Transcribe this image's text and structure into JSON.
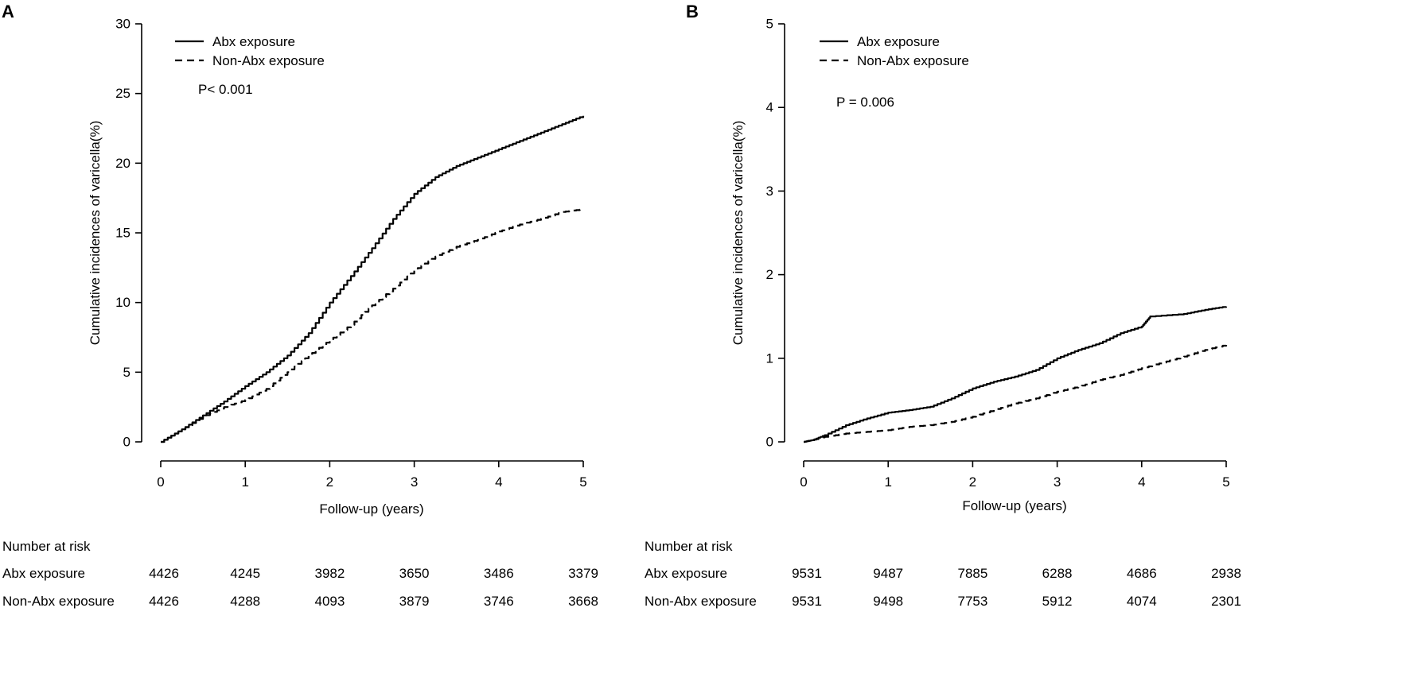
{
  "chart_data": [
    {
      "type": "line",
      "panel": "A",
      "xlabel": "Follow-up (years)",
      "ylabel": "Cumulative incidences of varicella(%)",
      "xlim": [
        0,
        5
      ],
      "ylim": [
        0,
        30
      ],
      "xticks": [
        "0",
        "1",
        "2",
        "3",
        "4",
        "5"
      ],
      "yticks": [
        "0",
        "5",
        "10",
        "15",
        "20",
        "25",
        "30"
      ],
      "legend_position": "top-left",
      "annotation": "P< 0.001",
      "series": [
        {
          "name": "Abx exposure",
          "style": "solid",
          "x": [
            0,
            0.25,
            0.5,
            0.75,
            1.0,
            1.25,
            1.5,
            1.75,
            2.0,
            2.25,
            2.5,
            2.75,
            3.0,
            3.25,
            3.5,
            3.75,
            4.0,
            4.25,
            4.5,
            4.75,
            5.0
          ],
          "y": [
            0,
            0.9,
            1.9,
            2.9,
            4.0,
            5.0,
            6.2,
            7.8,
            10.0,
            11.9,
            13.9,
            16.0,
            17.8,
            19.0,
            19.8,
            20.4,
            21.0,
            21.6,
            22.2,
            22.8,
            23.4
          ]
        },
        {
          "name": "Non-Abx exposure",
          "style": "dashed",
          "x": [
            0,
            0.25,
            0.5,
            0.75,
            1.0,
            1.25,
            1.5,
            1.75,
            2.0,
            2.25,
            2.5,
            2.75,
            3.0,
            3.25,
            3.5,
            3.75,
            4.0,
            4.25,
            4.5,
            4.75,
            5.0
          ],
          "y": [
            0,
            0.9,
            1.8,
            2.5,
            3.0,
            3.8,
            5.0,
            6.2,
            7.3,
            8.4,
            9.8,
            11.0,
            12.3,
            13.3,
            14.0,
            14.5,
            15.1,
            15.6,
            16.0,
            16.5,
            16.7
          ]
        }
      ],
      "risk_table": {
        "title": "Number at risk",
        "rows": [
          {
            "label": "Abx exposure",
            "values": [
              "4426",
              "4245",
              "3982",
              "3650",
              "3486",
              "3379"
            ]
          },
          {
            "label": "Non-Abx exposure",
            "values": [
              "4426",
              "4288",
              "4093",
              "3879",
              "3746",
              "3668"
            ]
          }
        ]
      }
    },
    {
      "type": "line",
      "panel": "B",
      "xlabel": "Follow-up (years)",
      "ylabel": "Cumulative incidences of varicella(%)",
      "xlim": [
        0,
        5
      ],
      "ylim": [
        0,
        5
      ],
      "xticks": [
        "0",
        "1",
        "2",
        "3",
        "4",
        "5"
      ],
      "yticks": [
        "0",
        "1",
        "2",
        "3",
        "4",
        "5"
      ],
      "legend_position": "top-left",
      "annotation": "P = 0.006",
      "series": [
        {
          "name": "Abx exposure",
          "style": "solid",
          "x": [
            0,
            0.1,
            0.25,
            0.5,
            0.75,
            1.0,
            1.25,
            1.5,
            1.75,
            2.0,
            2.25,
            2.5,
            2.75,
            3.0,
            3.25,
            3.5,
            3.75,
            4.0,
            4.1,
            4.5,
            4.75,
            5.0
          ],
          "y": [
            0,
            0.02,
            0.08,
            0.2,
            0.28,
            0.35,
            0.38,
            0.42,
            0.52,
            0.64,
            0.72,
            0.78,
            0.86,
            1.0,
            1.1,
            1.18,
            1.3,
            1.38,
            1.5,
            1.53,
            1.58,
            1.62
          ]
        },
        {
          "name": "Non-Abx exposure",
          "style": "dashed",
          "x": [
            0,
            0.1,
            0.25,
            0.5,
            0.75,
            1.0,
            1.25,
            1.5,
            1.75,
            2.0,
            2.25,
            2.5,
            2.75,
            3.0,
            3.25,
            3.5,
            3.75,
            4.0,
            4.25,
            4.5,
            4.75,
            5.0
          ],
          "y": [
            0,
            0.02,
            0.06,
            0.1,
            0.12,
            0.14,
            0.18,
            0.2,
            0.24,
            0.3,
            0.38,
            0.46,
            0.52,
            0.6,
            0.66,
            0.74,
            0.8,
            0.88,
            0.95,
            1.02,
            1.1,
            1.16
          ]
        }
      ],
      "risk_table": {
        "title": "Number at risk",
        "rows": [
          {
            "label": "Abx exposure",
            "values": [
              "9531",
              "9487",
              "7885",
              "6288",
              "4686",
              "2938"
            ]
          },
          {
            "label": "Non-Abx exposure",
            "values": [
              "9531",
              "9498",
              "7753",
              "5912",
              "4074",
              "2301"
            ]
          }
        ]
      }
    }
  ]
}
